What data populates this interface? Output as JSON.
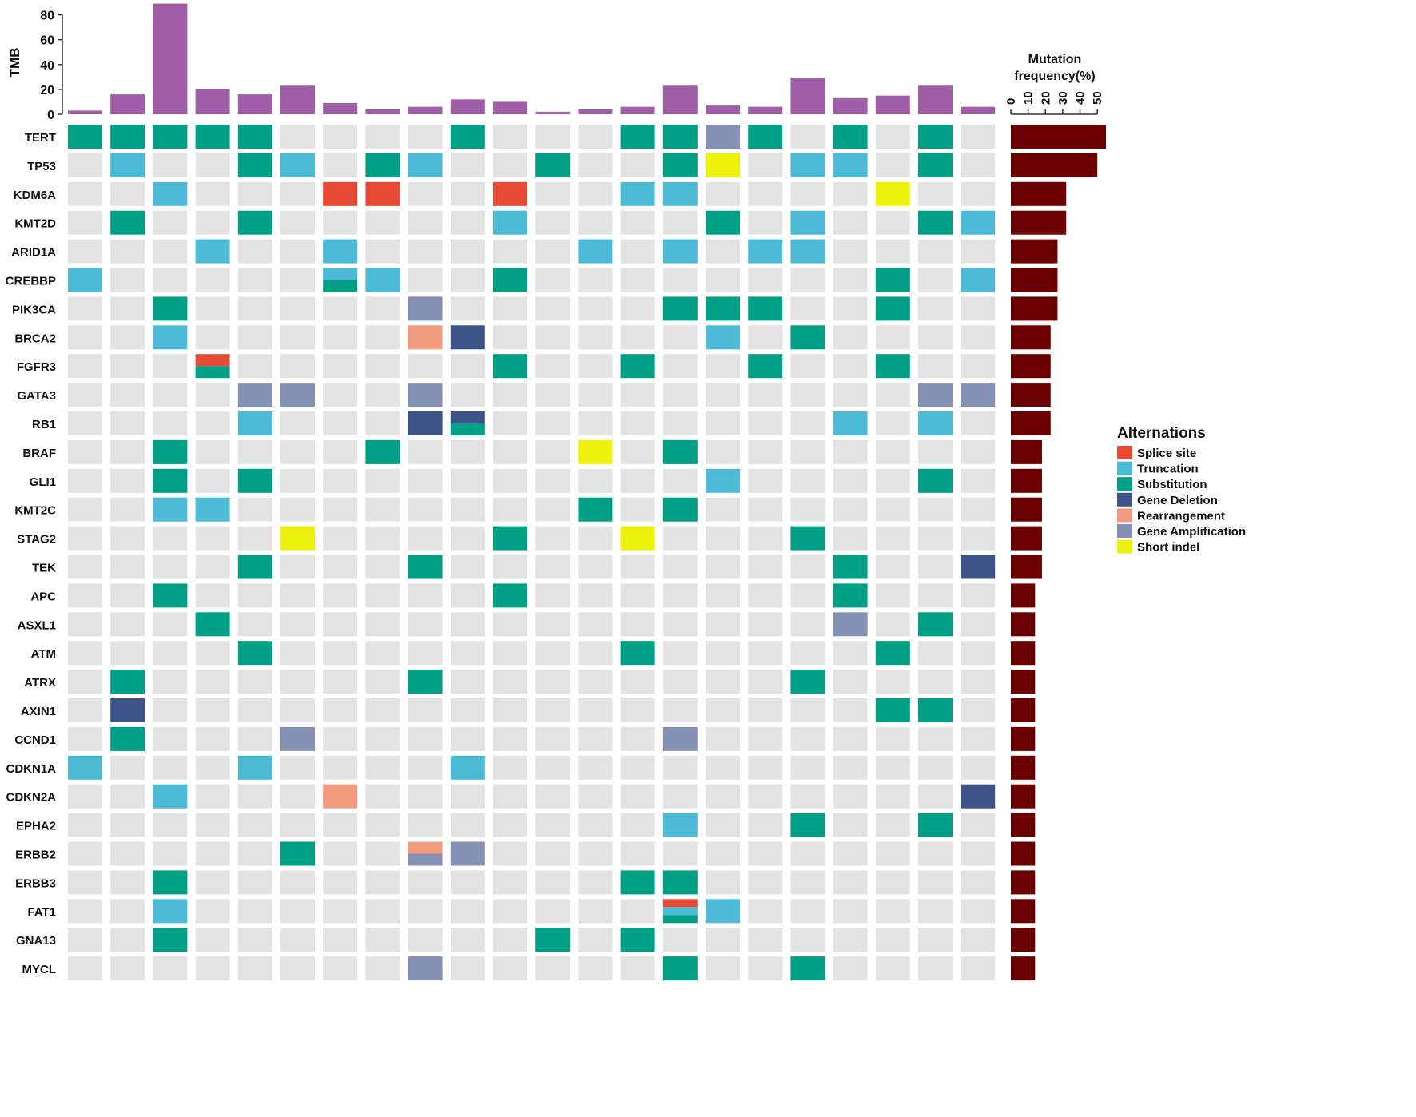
{
  "chart_data": {
    "type": "heatmap",
    "tmb": {
      "ylabel": "TMB",
      "ylim": [
        0,
        90
      ],
      "ticks": [
        0,
        20,
        40,
        60,
        80
      ],
      "values": [
        3,
        16,
        89,
        20,
        16,
        23,
        9,
        4,
        6,
        12,
        10,
        2,
        4,
        6,
        23,
        7,
        6,
        29,
        13,
        15,
        23,
        6
      ],
      "color": "#A15EA8"
    },
    "genes": [
      "TERT",
      "TP53",
      "KDM6A",
      "KMT2D",
      "ARID1A",
      "CREBBP",
      "PIK3CA",
      "BRCA2",
      "FGFR3",
      "GATA3",
      "RB1",
      "BRAF",
      "GLI1",
      "KMT2C",
      "STAG2",
      "TEK",
      "APC",
      "ASXL1",
      "ATM",
      "ATRX",
      "AXIN1",
      "CCND1",
      "CDKN1A",
      "CDKN2A",
      "EPHA2",
      "ERBB2",
      "ERBB3",
      "FAT1",
      "GNA13",
      "MYCL"
    ],
    "matrix": [
      [
        "Sub",
        "Sub",
        "Sub",
        "Sub",
        "Sub",
        "",
        "",
        "",
        "",
        "Sub",
        "",
        "",
        "",
        "Sub",
        "Sub",
        "Amp",
        "Sub",
        "",
        "Sub",
        "",
        "Sub",
        ""
      ],
      [
        "",
        "Tru",
        "",
        "",
        "Sub",
        "Tru",
        "",
        "Sub",
        "Tru",
        "",
        "",
        "Sub",
        "",
        "",
        "Sub",
        "Ind",
        "",
        "Tru",
        "Tru",
        "",
        "Sub",
        ""
      ],
      [
        "",
        "",
        "Tru",
        "",
        "",
        "",
        "Spl",
        "Spl",
        "",
        "",
        "Spl",
        "",
        "",
        "Tru",
        "Tru",
        "",
        "",
        "",
        "",
        "Ind",
        "",
        ""
      ],
      [
        "",
        "Sub",
        "",
        "",
        "Sub",
        "",
        "",
        "",
        "",
        "",
        "Tru",
        "",
        "",
        "",
        "",
        "Sub",
        "",
        "Tru",
        "",
        "",
        "Sub",
        "Tru"
      ],
      [
        "",
        "",
        "",
        "Tru",
        "",
        "",
        "Tru",
        "",
        "",
        "",
        "",
        "",
        "Tru",
        "",
        "Tru",
        "",
        "Tru",
        "Tru",
        "",
        "",
        "",
        ""
      ],
      [
        "Tru",
        "",
        "",
        "",
        "",
        "",
        "Tru|Sub",
        "Tru",
        "",
        "",
        "Sub",
        "",
        "",
        "",
        "",
        "",
        "",
        "",
        "",
        "Sub",
        "",
        "Tru"
      ],
      [
        "",
        "",
        "Sub",
        "",
        "",
        "",
        "",
        "",
        "Amp",
        "",
        "",
        "",
        "",
        "",
        "Sub",
        "Sub",
        "Sub",
        "",
        "",
        "Sub",
        "",
        ""
      ],
      [
        "",
        "",
        "Tru",
        "",
        "",
        "",
        "",
        "",
        "Rea",
        "Del",
        "",
        "",
        "",
        "",
        "",
        "Tru",
        "",
        "Sub",
        "",
        "",
        "",
        ""
      ],
      [
        "",
        "",
        "",
        "Spl|Sub",
        "",
        "",
        "",
        "",
        "",
        "",
        "Sub",
        "",
        "",
        "Sub",
        "",
        "",
        "Sub",
        "",
        "",
        "Sub",
        "",
        ""
      ],
      [
        "",
        "",
        "",
        "",
        "Amp",
        "Amp",
        "",
        "",
        "Amp",
        "",
        "",
        "",
        "",
        "",
        "",
        "",
        "",
        "",
        "",
        "",
        "Amp",
        "Amp"
      ],
      [
        "",
        "",
        "",
        "",
        "Tru",
        "",
        "",
        "",
        "Del",
        "Del|Sub",
        "",
        "",
        "",
        "",
        "",
        "",
        "",
        "",
        "Tru",
        "",
        "Tru",
        ""
      ],
      [
        "",
        "",
        "Sub",
        "",
        "",
        "",
        "",
        "Sub",
        "",
        "",
        "",
        "",
        "Ind",
        "",
        "Sub",
        "",
        "",
        "",
        "",
        "",
        "",
        ""
      ],
      [
        "",
        "",
        "Sub",
        "",
        "Sub",
        "",
        "",
        "",
        "",
        "",
        "",
        "",
        "",
        "",
        "",
        "Tru",
        "",
        "",
        "",
        "",
        "Sub",
        ""
      ],
      [
        "",
        "",
        "Tru",
        "Tru",
        "",
        "",
        "",
        "",
        "",
        "",
        "",
        "",
        "Sub",
        "",
        "Sub",
        "",
        "",
        "",
        "",
        "",
        "",
        ""
      ],
      [
        "",
        "",
        "",
        "",
        "",
        "Ind",
        "",
        "",
        "",
        "",
        "Sub",
        "",
        "",
        "Ind",
        "",
        "",
        "",
        "Sub",
        "",
        "",
        "",
        ""
      ],
      [
        "",
        "",
        "",
        "",
        "Sub",
        "",
        "",
        "",
        "Sub",
        "",
        "",
        "",
        "",
        "",
        "",
        "",
        "",
        "",
        "Sub",
        "",
        "",
        "Del"
      ],
      [
        "",
        "",
        "Sub",
        "",
        "",
        "",
        "",
        "",
        "",
        "",
        "Sub",
        "",
        "",
        "",
        "",
        "",
        "",
        "",
        "Sub",
        "",
        "",
        ""
      ],
      [
        "",
        "",
        "",
        "Sub",
        "",
        "",
        "",
        "",
        "",
        "",
        "",
        "",
        "",
        "",
        "",
        "",
        "",
        "",
        "Amp",
        "",
        "Sub",
        ""
      ],
      [
        "",
        "",
        "",
        "",
        "Sub",
        "",
        "",
        "",
        "",
        "",
        "",
        "",
        "",
        "Sub",
        "",
        "",
        "",
        "",
        "",
        "Sub",
        "",
        ""
      ],
      [
        "",
        "Sub",
        "",
        "",
        "",
        "",
        "",
        "",
        "Sub",
        "",
        "",
        "",
        "",
        "",
        "",
        "",
        "",
        "Sub",
        "",
        "",
        "",
        ""
      ],
      [
        "",
        "Del",
        "",
        "",
        "",
        "",
        "",
        "",
        "",
        "",
        "",
        "",
        "",
        "",
        "",
        "",
        "",
        "",
        "",
        "Sub",
        "Sub",
        ""
      ],
      [
        "",
        "Sub",
        "",
        "",
        "",
        "Amp",
        "",
        "",
        "",
        "",
        "",
        "",
        "",
        "",
        "Amp",
        "",
        "",
        "",
        "",
        "",
        "",
        ""
      ],
      [
        "Tru",
        "",
        "",
        "",
        "Tru",
        "",
        "",
        "",
        "",
        "Tru",
        "",
        "",
        "",
        "",
        "",
        "",
        "",
        "",
        "",
        "",
        "",
        ""
      ],
      [
        "",
        "",
        "Tru",
        "",
        "",
        "",
        "Rea",
        "",
        "",
        "",
        "",
        "",
        "",
        "",
        "",
        "",
        "",
        "",
        "",
        "",
        "",
        "Del"
      ],
      [
        "",
        "",
        "",
        "",
        "",
        "",
        "",
        "",
        "",
        "",
        "",
        "",
        "",
        "",
        "Tru",
        "",
        "",
        "Sub",
        "",
        "",
        "Sub",
        ""
      ],
      [
        "",
        "",
        "",
        "",
        "",
        "Sub",
        "",
        "",
        "Rea|Amp",
        "Amp",
        "",
        "",
        "",
        "",
        "",
        "",
        "",
        "",
        "",
        "",
        "",
        ""
      ],
      [
        "",
        "",
        "Sub",
        "",
        "",
        "",
        "",
        "",
        "",
        "",
        "",
        "",
        "",
        "Sub",
        "Sub",
        "",
        "",
        "",
        "",
        "",
        "",
        ""
      ],
      [
        "",
        "",
        "Tru",
        "",
        "",
        "",
        "",
        "",
        "",
        "",
        "",
        "",
        "",
        "",
        "Spl|Tru|Sub",
        "Tru",
        "",
        "",
        "",
        "",
        "",
        ""
      ],
      [
        "",
        "",
        "Sub",
        "",
        "",
        "",
        "",
        "",
        "",
        "",
        "",
        "Sub",
        "",
        "Sub",
        "",
        "",
        "",
        "",
        "",
        "",
        "",
        ""
      ],
      [
        "",
        "",
        "",
        "",
        "",
        "",
        "",
        "",
        "Amp",
        "",
        "",
        "",
        "",
        "",
        "Sub",
        "",
        "",
        "Sub",
        "",
        "",
        "",
        ""
      ]
    ],
    "frequency": {
      "title_line1": "Mutation",
      "title_line2": "frequency(%)",
      "xlim": [
        0,
        55
      ],
      "ticks": [
        0,
        10,
        20,
        30,
        40,
        50
      ],
      "values": [
        55,
        50,
        32,
        32,
        27,
        27,
        27,
        23,
        23,
        23,
        23,
        18,
        18,
        18,
        18,
        18,
        14,
        14,
        14,
        14,
        14,
        14,
        14,
        14,
        14,
        14,
        14,
        14,
        14,
        14
      ],
      "color": "#6B0000"
    },
    "legend": {
      "title": "Alternations",
      "placement": "right",
      "items": [
        {
          "code": "Spl",
          "label": "Splice site",
          "color": "#E64B35"
        },
        {
          "code": "Tru",
          "label": "Truncation",
          "color": "#4DBBD5"
        },
        {
          "code": "Sub",
          "label": "Substitution",
          "color": "#00A087"
        },
        {
          "code": "Del",
          "label": "Gene Deletion",
          "color": "#3C5488"
        },
        {
          "code": "Rea",
          "label": "Rearrangement",
          "color": "#F39B7F"
        },
        {
          "code": "Amp",
          "label": "Gene Amplification",
          "color": "#8491B4"
        },
        {
          "code": "Ind",
          "label": "Short indel",
          "color": "#EEF00E"
        }
      ]
    },
    "empty_color": "#E3E3E3"
  }
}
